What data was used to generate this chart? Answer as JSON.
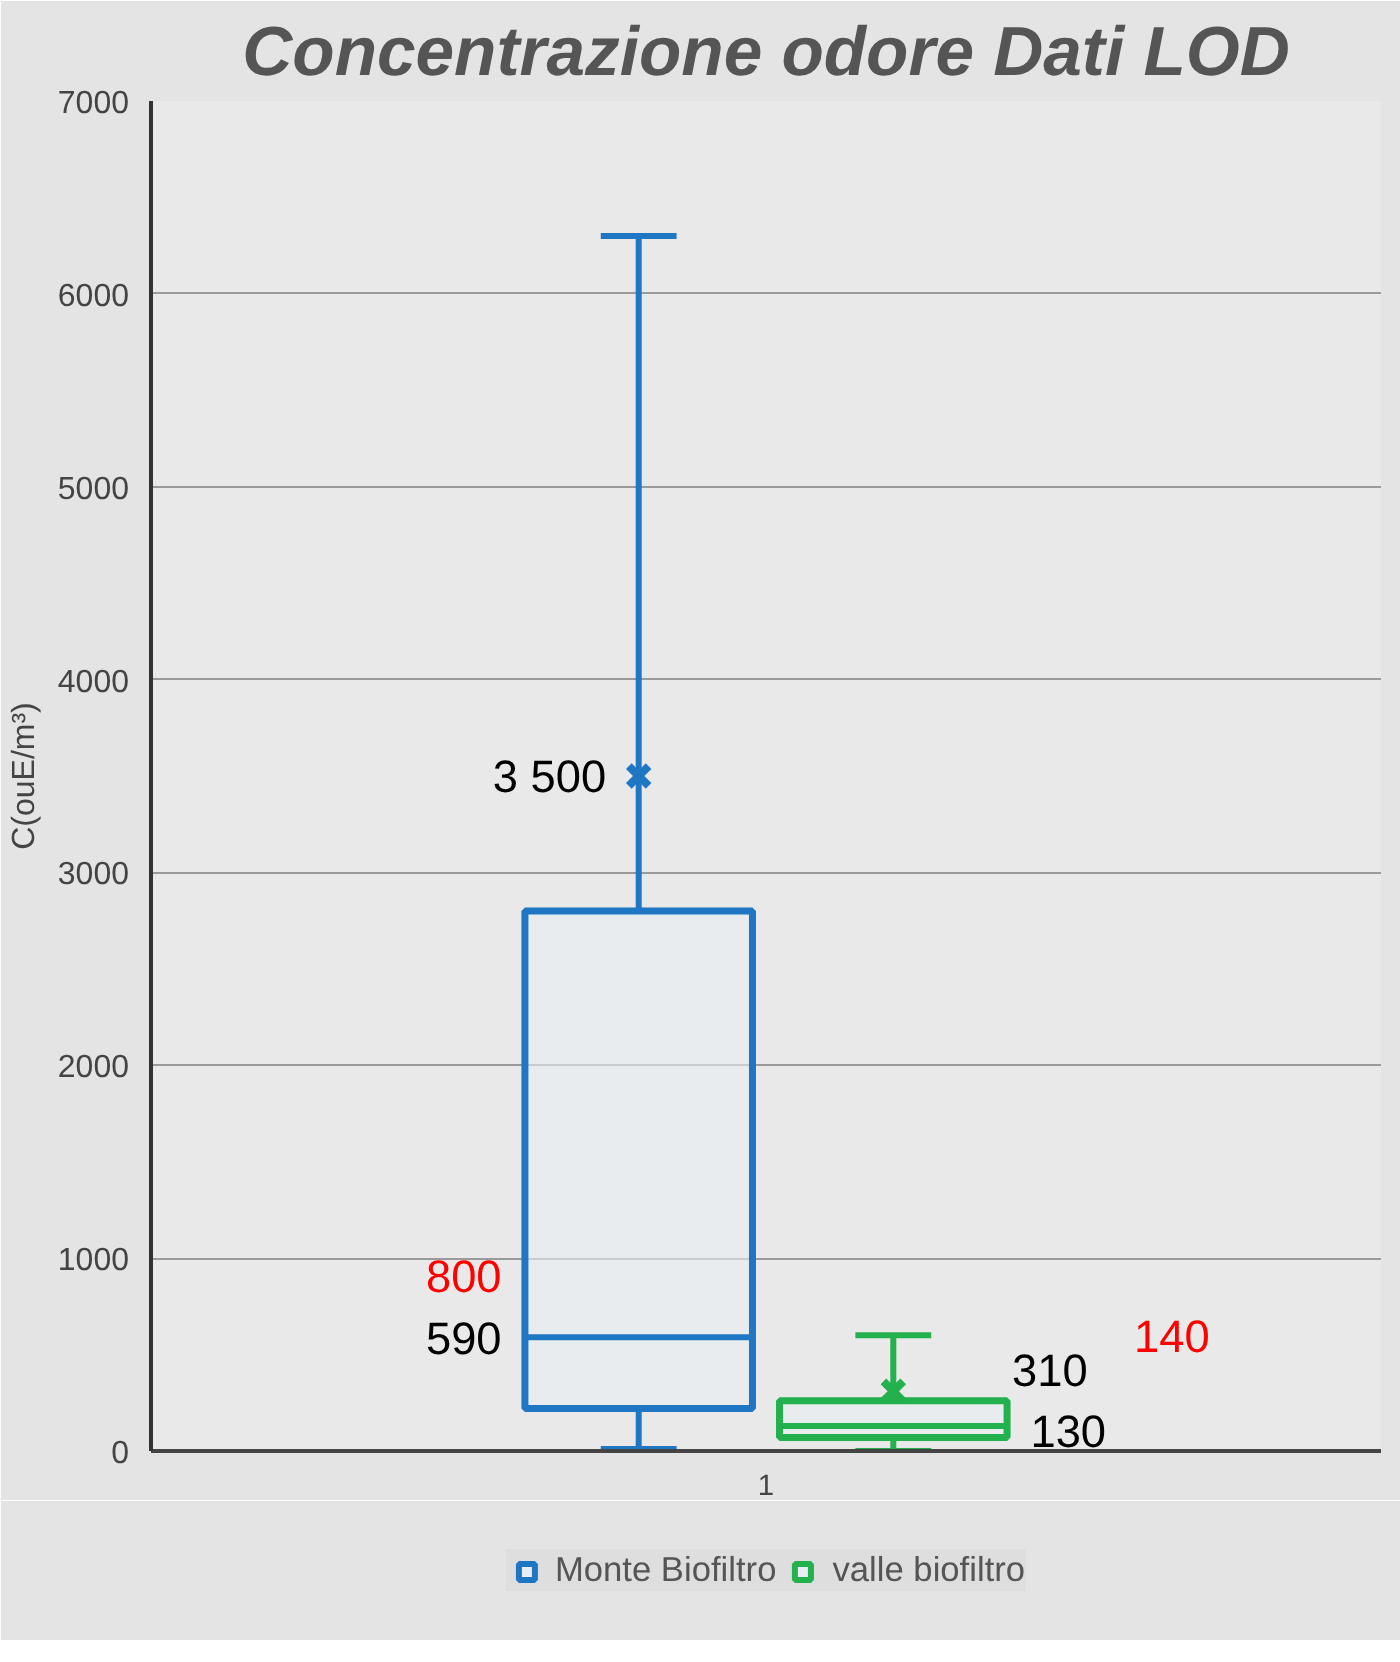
{
  "chart_data": {
    "type": "box",
    "title": "Concentrazione odore Dati LOD",
    "ylabel": "C(ouE/m³)",
    "categories": [
      "1"
    ],
    "series": [
      {
        "name": "Monte Biofiltro",
        "color": "#1f77c4",
        "boxes": [
          {
            "low": 10,
            "q1": 220,
            "median": 590,
            "q3": 2800,
            "high": 6300,
            "mean": 3500
          }
        ]
      },
      {
        "name": "valle biofiltro",
        "color": "#22b14c",
        "boxes": [
          {
            "low": 0,
            "q1": 70,
            "median": 130,
            "q3": 260,
            "high": 600,
            "mean": 310
          }
        ]
      }
    ],
    "ylim": [
      0,
      7000
    ],
    "yticks": [
      0,
      1000,
      2000,
      3000,
      4000,
      5000,
      6000,
      7000
    ],
    "grid": "y",
    "legend": "bottom",
    "annotations": [
      "3 500",
      "590",
      "310",
      "130",
      "800",
      "140"
    ]
  }
}
